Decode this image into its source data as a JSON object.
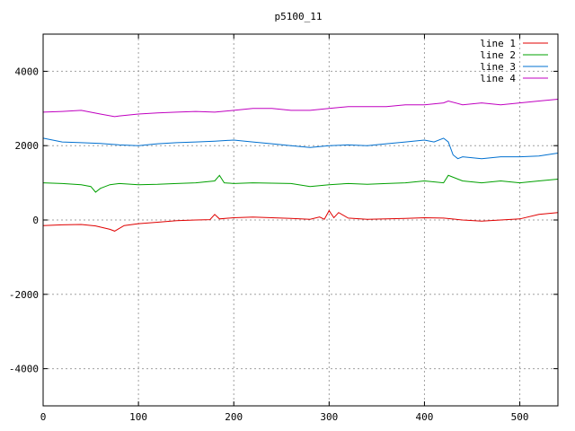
{
  "chart_data": {
    "type": "line",
    "title": "p5100_11",
    "xlabel": "",
    "ylabel": "",
    "xlim": [
      0,
      540
    ],
    "ylim": [
      -5000,
      5000
    ],
    "xticks": [
      0,
      100,
      200,
      300,
      400,
      500
    ],
    "yticks": [
      -4000,
      -2000,
      0,
      2000,
      4000
    ],
    "grid": true,
    "legend_position": "top-right",
    "series": [
      {
        "name": "line 1",
        "color": "#e00000",
        "x": [
          0,
          20,
          40,
          55,
          70,
          75,
          85,
          100,
          120,
          140,
          160,
          175,
          180,
          185,
          200,
          220,
          240,
          260,
          280,
          290,
          295,
          300,
          305,
          310,
          320,
          340,
          360,
          380,
          400,
          420,
          440,
          460,
          480,
          500,
          520,
          540
        ],
        "y": [
          -150,
          -130,
          -120,
          -160,
          -250,
          -300,
          -150,
          -100,
          -60,
          -20,
          0,
          10,
          150,
          30,
          60,
          80,
          60,
          40,
          20,
          80,
          20,
          250,
          60,
          200,
          50,
          20,
          30,
          40,
          60,
          50,
          0,
          -30,
          0,
          30,
          150,
          200
        ]
      },
      {
        "name": "line 2",
        "color": "#00a000",
        "x": [
          0,
          20,
          40,
          50,
          55,
          60,
          70,
          80,
          100,
          120,
          140,
          160,
          180,
          185,
          190,
          200,
          220,
          240,
          260,
          280,
          300,
          320,
          340,
          360,
          380,
          400,
          420,
          425,
          440,
          460,
          480,
          500,
          520,
          540
        ],
        "y": [
          1000,
          980,
          950,
          900,
          750,
          850,
          950,
          980,
          950,
          960,
          980,
          1000,
          1050,
          1200,
          1000,
          980,
          1000,
          990,
          980,
          900,
          950,
          980,
          960,
          980,
          1000,
          1050,
          1000,
          1200,
          1050,
          1000,
          1050,
          1000,
          1050,
          1100
        ]
      },
      {
        "name": "line 3",
        "color": "#0070d0",
        "x": [
          0,
          20,
          40,
          60,
          80,
          100,
          120,
          140,
          160,
          180,
          200,
          220,
          240,
          260,
          280,
          300,
          320,
          340,
          360,
          380,
          400,
          410,
          420,
          425,
          430,
          435,
          440,
          460,
          480,
          500,
          520,
          540
        ],
        "y": [
          2200,
          2100,
          2080,
          2060,
          2020,
          2000,
          2050,
          2080,
          2100,
          2120,
          2150,
          2100,
          2050,
          2000,
          1950,
          2000,
          2020,
          2000,
          2050,
          2100,
          2150,
          2100,
          2200,
          2100,
          1750,
          1650,
          1700,
          1650,
          1700,
          1700,
          1720,
          1800
        ]
      },
      {
        "name": "line 4",
        "color": "#c000c0",
        "x": [
          0,
          20,
          40,
          60,
          75,
          80,
          100,
          120,
          140,
          160,
          180,
          200,
          220,
          240,
          260,
          280,
          300,
          320,
          340,
          360,
          380,
          400,
          420,
          425,
          440,
          460,
          480,
          500,
          520,
          540
        ],
        "y": [
          2900,
          2920,
          2950,
          2850,
          2780,
          2800,
          2850,
          2880,
          2900,
          2920,
          2900,
          2950,
          3000,
          3000,
          2950,
          2950,
          3000,
          3050,
          3050,
          3050,
          3100,
          3100,
          3150,
          3200,
          3100,
          3150,
          3100,
          3150,
          3200,
          3250
        ]
      }
    ]
  }
}
